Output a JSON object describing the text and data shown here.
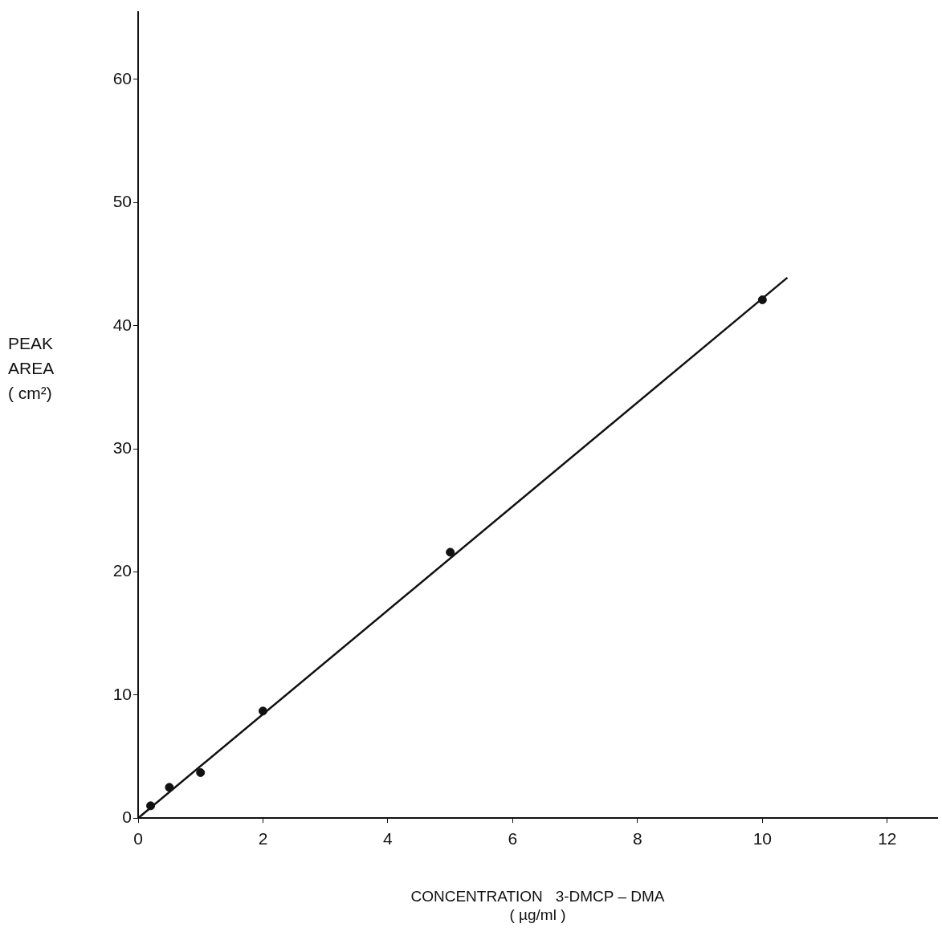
{
  "chart_data": {
    "type": "scatter",
    "xlabel": "CONCENTRATION   3-DMCP – DMA\n( µg/ml )",
    "ylabel": "PEAK\nAREA\n( cm²)",
    "series": [
      {
        "color": "#111111",
        "x": [
          0.2,
          0.5,
          1,
          2,
          5,
          10
        ],
        "values": [
          1.0,
          2.5,
          3.7,
          8.7,
          21.6,
          42.1
        ],
        "marker": "circle"
      },
      {
        "type": "line",
        "color": "#111111",
        "x": [
          0,
          10.4
        ],
        "values": [
          0,
          43.9
        ],
        "marker": "none",
        "line_style": "solid"
      }
    ],
    "xlim": [
      0,
      12.8
    ],
    "ylim": [
      0,
      65.5
    ],
    "xticks": [
      0,
      2,
      4,
      6,
      8,
      10,
      12
    ],
    "yticks": [
      0,
      10,
      20,
      30,
      40,
      50,
      60
    ],
    "grid": false,
    "legend": false
  }
}
